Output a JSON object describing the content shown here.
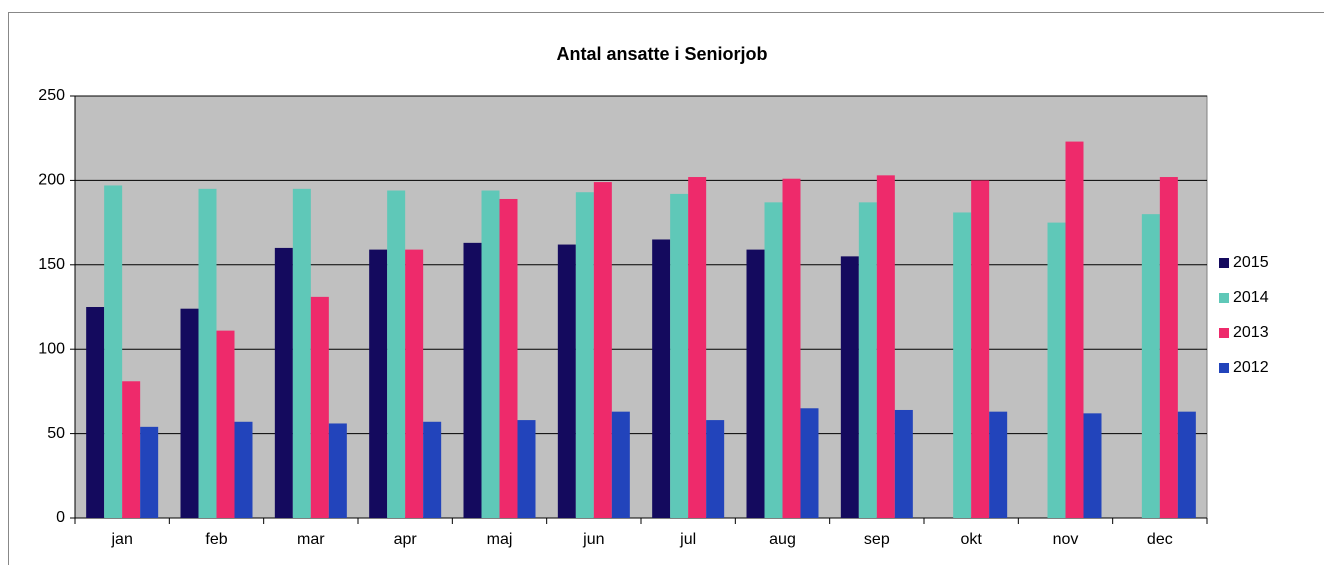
{
  "chart_data": {
    "type": "bar",
    "title": "Antal ansatte i Seniorjob",
    "categories": [
      "jan",
      "feb",
      "mar",
      "apr",
      "maj",
      "jun",
      "jul",
      "aug",
      "sep",
      "okt",
      "nov",
      "dec"
    ],
    "series": [
      {
        "name": "2015",
        "color": "#140a5e",
        "values": [
          125,
          124,
          160,
          159,
          163,
          162,
          165,
          159,
          155,
          null,
          null,
          null
        ]
      },
      {
        "name": "2014",
        "color": "#5fc8b8",
        "values": [
          197,
          195,
          195,
          194,
          194,
          193,
          192,
          187,
          187,
          181,
          175,
          180
        ]
      },
      {
        "name": "2013",
        "color": "#ee2a6b",
        "values": [
          81,
          111,
          131,
          159,
          189,
          199,
          202,
          201,
          203,
          200,
          223,
          202
        ]
      },
      {
        "name": "2012",
        "color": "#2244bb",
        "values": [
          54,
          57,
          56,
          57,
          58,
          63,
          58,
          65,
          64,
          63,
          62,
          63
        ]
      }
    ],
    "ylim": [
      0,
      250
    ],
    "yticks": [
      0,
      50,
      100,
      150,
      200,
      250
    ],
    "grid": true,
    "legend": "right"
  }
}
